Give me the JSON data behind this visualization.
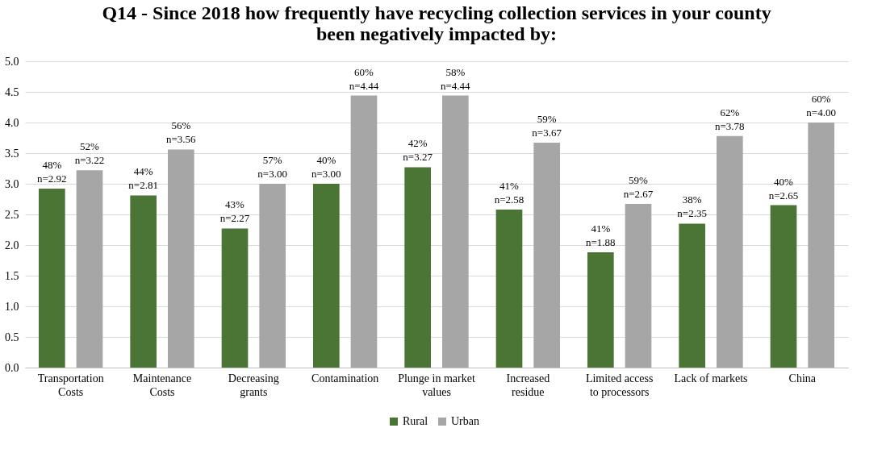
{
  "chart_data": {
    "type": "bar",
    "title": "Q14 - Since 2018 how frequently have recycling collection services in your county\nbeen negatively impacted by:",
    "categories": [
      "Transportation Costs",
      "Maintenance Costs",
      "Decreasing grants",
      "Contamination",
      "Plunge in market values",
      "Increased residue",
      "Limited access to processors",
      "Lack of markets",
      "China"
    ],
    "series": [
      {
        "name": "Rural",
        "color": "#4a7534",
        "values": [
          2.92,
          2.81,
          2.27,
          3.0,
          3.27,
          2.58,
          1.88,
          2.35,
          2.65
        ],
        "value_labels": [
          "48%\nn=2.92",
          "44%\nn=2.81",
          "43%\nn=2.27",
          "40%\nn=3.00",
          "42%\nn=3.27",
          "41%\nn=2.58",
          "41%\nn=1.88",
          "38%\nn=2.35",
          "40%\nn=2.65"
        ]
      },
      {
        "name": "Urban",
        "color": "#a6a6a6",
        "values": [
          3.22,
          3.56,
          3.0,
          4.44,
          4.44,
          3.67,
          2.67,
          3.78,
          4.0
        ],
        "value_labels": [
          "52%\nn=3.22",
          "56%\nn=3.56",
          "57%\nn=3.00",
          "60%\nn=4.44",
          "58%\nn=4.44",
          "59%\nn=3.67",
          "59%\nn=2.67",
          "62%\nn=3.78",
          "60%\nn=4.00"
        ]
      }
    ],
    "ylim": [
      0,
      5
    ],
    "yticks": [
      {
        "value": 0,
        "label": "0.0"
      },
      {
        "value": 0.5,
        "label": "0.5"
      },
      {
        "value": 1,
        "label": "1.0"
      },
      {
        "value": 1.5,
        "label": "1.5"
      },
      {
        "value": 2,
        "label": "2.0"
      },
      {
        "value": 2.5,
        "label": "2.5"
      },
      {
        "value": 3,
        "label": "3.0"
      },
      {
        "value": 3.5,
        "label": "3.5"
      },
      {
        "value": 4,
        "label": "4.0"
      },
      {
        "value": 4.5,
        "label": "4.5"
      },
      {
        "value": 5,
        "label": "5.0"
      }
    ],
    "grid": "y",
    "legend": "bottom"
  }
}
